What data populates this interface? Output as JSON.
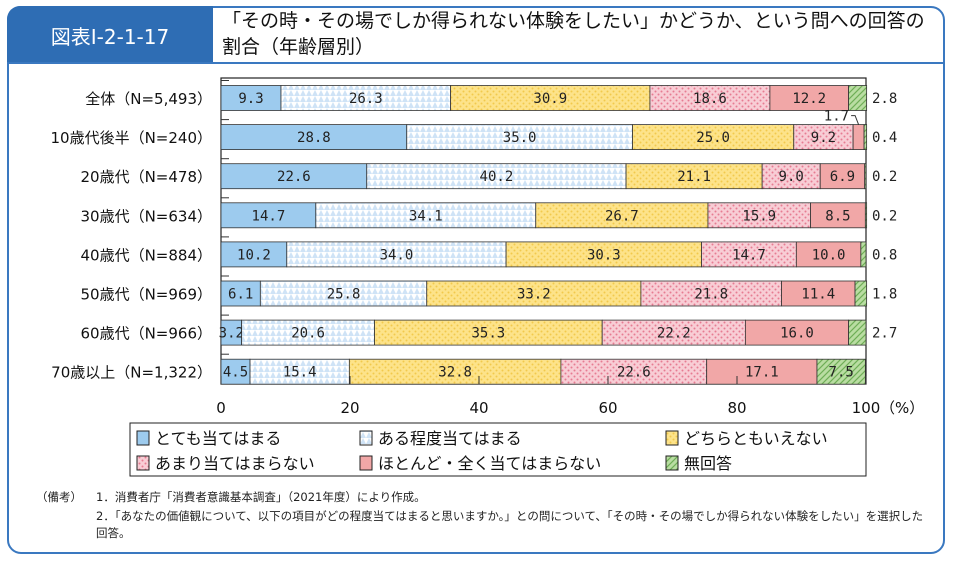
{
  "header": {
    "figure_id": "図表Ⅰ-2-1-17",
    "title": "「その時・その場でしか得られない体験をしたい」かどうか、という問への回答の割合（年齢層別）"
  },
  "chart_data": {
    "type": "bar",
    "orientation": "horizontal-stacked-100",
    "categories": [
      "全体（N=5,493）",
      "10歳代後半（N=240）",
      "20歳代（N=478）",
      "30歳代（N=634）",
      "40歳代（N=884）",
      "50歳代（N=969）",
      "60歳代（N=966）",
      "70歳以上（N=1,322）"
    ],
    "series": [
      {
        "name": "とても当てはまる",
        "color": "#9dcbee",
        "pattern": "solid",
        "values": [
          9.3,
          28.8,
          22.6,
          14.7,
          10.2,
          6.1,
          3.2,
          4.5
        ]
      },
      {
        "name": "ある程度当てはまる",
        "color": "#cfe3f6",
        "pattern": "triangles",
        "values": [
          26.3,
          35.0,
          40.2,
          34.1,
          34.0,
          25.8,
          20.6,
          15.4
        ]
      },
      {
        "name": "どちらともいえない",
        "color": "#fde38a",
        "pattern": "dots",
        "values": [
          30.9,
          25.0,
          21.1,
          26.7,
          30.3,
          33.2,
          35.3,
          32.8
        ]
      },
      {
        "name": "あまり当てはまらない",
        "color": "#f8cdd5",
        "pattern": "dots",
        "values": [
          18.6,
          9.2,
          9.0,
          15.9,
          14.7,
          21.8,
          22.2,
          22.6
        ]
      },
      {
        "name": "ほとんど・全く当てはまらない",
        "color": "#f1a7a7",
        "pattern": "solid",
        "values": [
          12.2,
          1.7,
          6.9,
          8.5,
          10.0,
          11.4,
          16.0,
          17.1
        ]
      },
      {
        "name": "無回答",
        "color": "#b9dda2",
        "pattern": "stripes",
        "values": [
          2.8,
          0.4,
          0.2,
          0.2,
          0.8,
          1.8,
          2.7,
          7.5
        ]
      }
    ],
    "xlim": [
      0,
      100
    ],
    "xticks": [
      "0",
      "20",
      "40",
      "60",
      "80",
      "100"
    ],
    "xunit": "（%）",
    "legend_position": "bottom"
  },
  "notes": {
    "label": "（備考）",
    "items": [
      "1．消費者庁「消費者意識基本調査」（2021年度）により作成。",
      "2．「あなたの価値観について、以下の項目がどの程度当てはまると思いますか。」との問について、「その時・その場でしか得られない体験をしたい」を選択した回答。"
    ]
  }
}
